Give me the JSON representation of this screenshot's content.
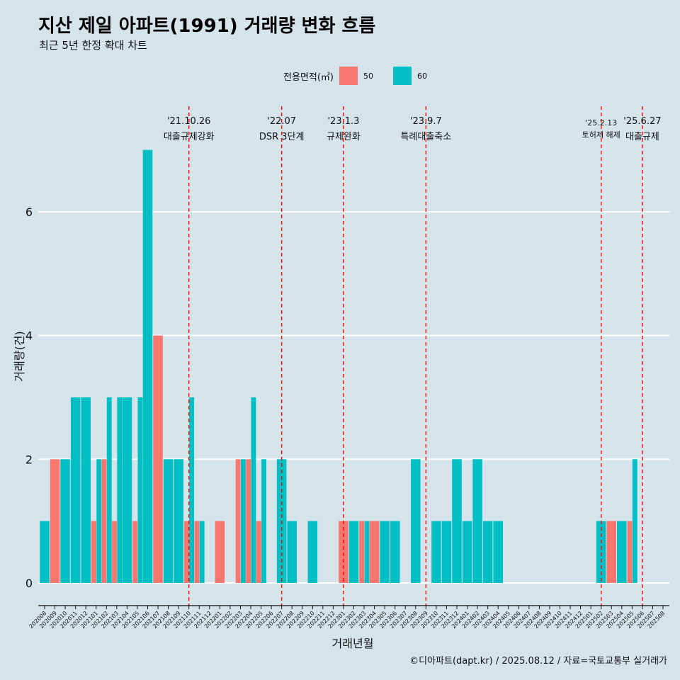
{
  "title": "지산 제일 아파트(1991) 거래량 변화 흐름",
  "subtitle": "최근 5년 한정 확대 차트",
  "caption": "©디아파트(dapt.kr) / 2025.08.12 / 자료=국토교통부 실거래가",
  "legend": {
    "title": "전용면적(㎡)",
    "items": [
      {
        "label": "50",
        "color": "#f8766d"
      },
      {
        "label": "60",
        "color": "#00bfc4"
      }
    ]
  },
  "colors": {
    "background": "#d5e4eb",
    "grid": "#ffffff",
    "vline": "#ff0000",
    "s50": "#f8766d",
    "s60": "#00bfc4"
  },
  "chart_data": {
    "type": "bar",
    "stacking": "dodge",
    "xlabel": "거래년월",
    "ylabel": "거래량(건)",
    "ylim": [
      0,
      7
    ],
    "yticks": [
      0,
      2,
      4,
      6
    ],
    "grid": true,
    "legend_position": "top",
    "categories": [
      "202008",
      "202009",
      "202010",
      "202011",
      "202012",
      "202101",
      "202102",
      "202103",
      "202104",
      "202105",
      "202106",
      "202107",
      "202108",
      "202109",
      "202110",
      "202111",
      "202112",
      "202201",
      "202202",
      "202203",
      "202204",
      "202205",
      "202206",
      "202207",
      "202208",
      "202209",
      "202210",
      "202211",
      "202212",
      "202301",
      "202302",
      "202303",
      "202304",
      "202305",
      "202306",
      "202307",
      "202308",
      "202309",
      "202310",
      "202311",
      "202312",
      "202401",
      "202402",
      "202403",
      "202404",
      "202405",
      "202406",
      "202407",
      "202408",
      "202409",
      "202410",
      "202411",
      "202412",
      "202501",
      "202502",
      "202503",
      "202504",
      "202505",
      "202506",
      "202507",
      "202508"
    ],
    "series": [
      {
        "name": "50",
        "values": [
          0,
          2,
          0,
          0,
          0,
          1,
          2,
          1,
          0,
          1,
          0,
          4,
          0,
          0,
          1,
          1,
          0,
          1,
          0,
          2,
          2,
          1,
          0,
          0,
          0,
          0,
          0,
          0,
          0,
          1,
          0,
          1,
          1,
          0,
          0,
          0,
          0,
          0,
          0,
          0,
          0,
          0,
          0,
          0,
          0,
          0,
          0,
          0,
          0,
          0,
          0,
          0,
          0,
          0,
          0,
          1,
          0,
          1,
          0,
          0,
          0
        ]
      },
      {
        "name": "60",
        "values": [
          1,
          0,
          2,
          3,
          3,
          2,
          3,
          3,
          3,
          3,
          7,
          0,
          2,
          2,
          3,
          1,
          0,
          0,
          0,
          2,
          3,
          2,
          0,
          2,
          1,
          0,
          1,
          0,
          0,
          0,
          1,
          1,
          0,
          1,
          1,
          0,
          2,
          0,
          1,
          1,
          2,
          1,
          2,
          1,
          1,
          0,
          0,
          0,
          0,
          0,
          0,
          0,
          0,
          0,
          1,
          0,
          1,
          2,
          0,
          0,
          0
        ]
      }
    ],
    "annotations": [
      {
        "category": "202110",
        "date": "'21.10.26",
        "text": "대출규제강화"
      },
      {
        "category": "202207",
        "date": "'22.07",
        "text": "DSR 3단계"
      },
      {
        "category": "202301",
        "date": "'23.1.3",
        "text": "규제완화"
      },
      {
        "category": "202309",
        "date": "'23.9.7",
        "text": "특례대출축소"
      },
      {
        "category": "202502",
        "date": "'25.2.13",
        "text": "토허제 해제"
      },
      {
        "category": "202506",
        "date": "'25.6.27",
        "text": "대출규제"
      }
    ]
  }
}
